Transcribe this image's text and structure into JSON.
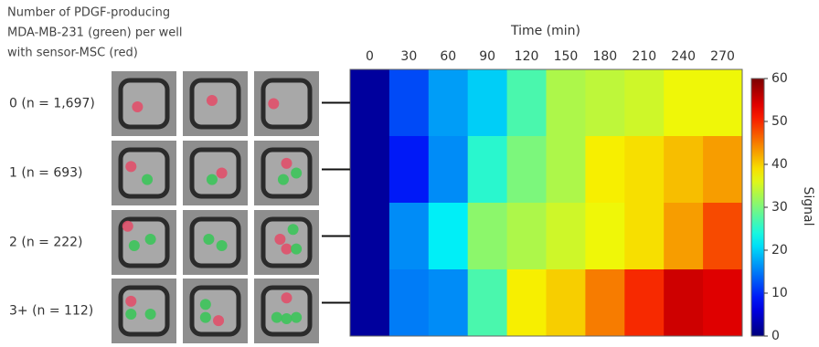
{
  "chart_data": {
    "type": "heatmap",
    "header": [
      "Number of PDGF-producing",
      "MDA-MB-231 (green) per well",
      "with sensor-MSC (red)"
    ],
    "x_title": "Time (min)",
    "categories": [
      "0",
      "30",
      "60",
      "90",
      "120",
      "150",
      "180",
      "210",
      "240",
      "270"
    ],
    "rows": [
      "0 (n = 1,697)",
      "1 (n = 693)",
      "2 (n = 222)",
      "3+ (n = 112)"
    ],
    "values": [
      [
        2,
        12,
        17,
        20,
        27,
        33,
        34,
        35,
        37,
        37
      ],
      [
        2,
        9,
        16,
        25,
        30,
        33,
        38,
        39,
        41,
        43
      ],
      [
        2,
        16,
        22,
        31,
        33,
        35,
        37,
        39,
        43,
        48
      ],
      [
        2,
        15,
        16,
        27,
        38,
        40,
        45,
        50,
        55,
        54
      ]
    ],
    "colormap": "jet",
    "zlim": [
      0,
      60
    ],
    "zticks": [
      0,
      10,
      20,
      30,
      40,
      50,
      60
    ],
    "colorbar_label": "Signal"
  }
}
